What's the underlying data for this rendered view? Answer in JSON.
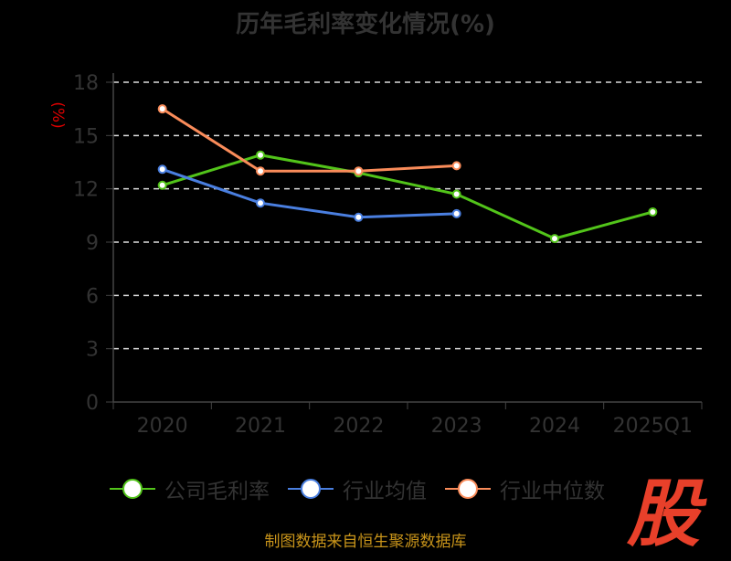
{
  "chart_data": {
    "type": "line",
    "title": "历年毛利率变化情况(%)",
    "ylabel": "(%)",
    "xlabel": "",
    "categories": [
      "2020",
      "2021",
      "2022",
      "2023",
      "2024",
      "2025Q1"
    ],
    "ylim": [
      0,
      18
    ],
    "yticks": [
      0,
      3,
      6,
      9,
      12,
      15,
      18
    ],
    "grid": true,
    "legend_position": "bottom",
    "series": [
      {
        "name": "公司毛利率",
        "color": "#52c41a",
        "values": [
          12.2,
          13.9,
          12.9,
          11.7,
          9.2,
          10.7
        ]
      },
      {
        "name": "行业均值",
        "color": "#4a7fe0",
        "values": [
          13.1,
          11.2,
          10.4,
          10.6,
          null,
          null
        ]
      },
      {
        "name": "行业中位数",
        "color": "#fa8c5a",
        "values": [
          16.5,
          13.0,
          13.0,
          13.3,
          null,
          null
        ]
      }
    ]
  },
  "source": "制图数据来自恒生聚源数据库",
  "logo_text": "股"
}
